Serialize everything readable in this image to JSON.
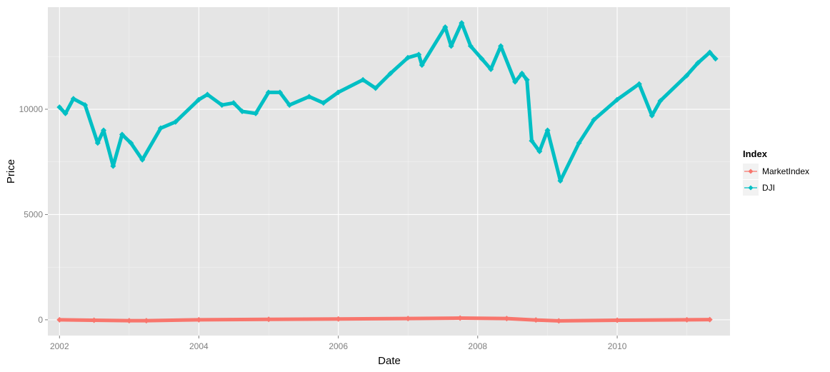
{
  "chart_data": {
    "type": "line",
    "xlabel": "Date",
    "ylabel": "Price",
    "x_ticks": [
      "2002",
      "2004",
      "2006",
      "2008",
      "2010"
    ],
    "y_ticks": [
      "0",
      "5000",
      "10000"
    ],
    "xlim": [
      "2001-11-01",
      "2011-08-15"
    ],
    "ylim": [
      -750,
      14850
    ],
    "grid": true,
    "legend": {
      "title": "Index",
      "placement": "right"
    },
    "series": [
      {
        "name": "MarketIndex",
        "color": "#F8766D",
        "x": [
          "2002-01-01",
          "2002-07-01",
          "2003-01-01",
          "2003-04-01",
          "2004-01-01",
          "2005-01-01",
          "2006-01-01",
          "2007-01-01",
          "2007-10-01",
          "2008-06-01",
          "2008-11-01",
          "2009-03-01",
          "2010-01-01",
          "2011-01-01",
          "2011-05-01"
        ],
        "y": [
          0,
          -20,
          -40,
          -40,
          0,
          20,
          40,
          60,
          80,
          60,
          -10,
          -50,
          -20,
          0,
          10
        ]
      },
      {
        "name": "DJI",
        "color": "#00BFC4",
        "x": [
          "2002-01-01",
          "2002-02-01",
          "2002-03-15",
          "2002-05-15",
          "2002-07-20",
          "2002-08-20",
          "2002-10-09",
          "2002-11-25",
          "2003-01-10",
          "2003-03-11",
          "2003-06-15",
          "2003-09-01",
          "2003-12-31",
          "2004-02-15",
          "2004-05-01",
          "2004-07-01",
          "2004-08-15",
          "2004-10-25",
          "2004-12-31",
          "2005-03-01",
          "2005-04-20",
          "2005-08-01",
          "2005-10-15",
          "2005-12-31",
          "2006-05-10",
          "2006-07-15",
          "2006-10-01",
          "2006-12-31",
          "2007-02-26",
          "2007-03-15",
          "2007-07-15",
          "2007-08-15",
          "2007-10-09",
          "2007-11-25",
          "2008-01-22",
          "2008-03-10",
          "2008-05-01",
          "2008-07-15",
          "2008-08-20",
          "2008-09-15",
          "2008-10-10",
          "2008-11-20",
          "2009-01-01",
          "2009-03-09",
          "2009-06-15",
          "2009-09-01",
          "2009-12-31",
          "2010-04-26",
          "2010-07-02",
          "2010-08-15",
          "2010-12-31",
          "2011-02-28",
          "2011-05-01",
          "2011-05-31"
        ],
        "y": [
          10100,
          9800,
          10500,
          10200,
          8400,
          9000,
          7300,
          8800,
          8400,
          7600,
          9100,
          9400,
          10450,
          10700,
          10200,
          10300,
          9900,
          9800,
          10800,
          10800,
          10200,
          10600,
          10300,
          10800,
          11400,
          11000,
          11700,
          12450,
          12600,
          12100,
          13900,
          13000,
          14100,
          13000,
          12400,
          11900,
          13000,
          11300,
          11700,
          11400,
          8500,
          8000,
          9000,
          6600,
          8400,
          9500,
          10450,
          11200,
          9700,
          10400,
          11600,
          12200,
          12700,
          12400
        ]
      }
    ]
  }
}
